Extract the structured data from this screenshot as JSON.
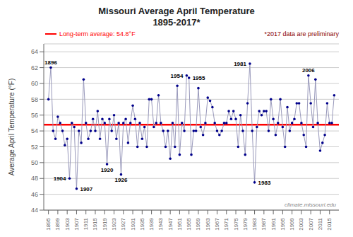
{
  "chart_data": {
    "type": "line",
    "title": "Missouri Average April Temperature",
    "subtitle": "1895-2017*",
    "ylabel": "Average April Temperature (°F)",
    "x": [
      1895,
      1896,
      1897,
      1898,
      1899,
      1900,
      1901,
      1902,
      1903,
      1904,
      1905,
      1906,
      1907,
      1908,
      1909,
      1910,
      1911,
      1912,
      1913,
      1914,
      1915,
      1916,
      1917,
      1918,
      1919,
      1920,
      1921,
      1922,
      1923,
      1924,
      1925,
      1926,
      1927,
      1928,
      1929,
      1930,
      1931,
      1932,
      1933,
      1934,
      1935,
      1936,
      1937,
      1938,
      1939,
      1940,
      1941,
      1942,
      1943,
      1944,
      1945,
      1946,
      1947,
      1948,
      1949,
      1950,
      1951,
      1952,
      1953,
      1954,
      1955,
      1956,
      1957,
      1958,
      1959,
      1960,
      1961,
      1962,
      1963,
      1964,
      1965,
      1966,
      1967,
      1968,
      1969,
      1970,
      1971,
      1972,
      1973,
      1974,
      1975,
      1976,
      1977,
      1978,
      1979,
      1980,
      1981,
      1982,
      1983,
      1984,
      1985,
      1986,
      1987,
      1988,
      1989,
      1990,
      1991,
      1992,
      1993,
      1994,
      1995,
      1996,
      1997,
      1998,
      1999,
      2000,
      2001,
      2002,
      2003,
      2004,
      2005,
      2006,
      2007,
      2008,
      2009,
      2010,
      2011,
      2012,
      2013,
      2014,
      2015,
      2016,
      2017
    ],
    "series": [
      {
        "type": "line",
        "color": "#9999BB",
        "values": [
          58.0,
          62.0,
          54.0,
          53.0,
          55.8,
          55.0,
          54.0,
          52.2,
          53.0,
          48.0,
          55.0,
          54.5,
          46.7,
          54.0,
          52.5,
          60.5,
          55.0,
          53.0,
          54.0,
          55.5,
          54.0,
          56.5,
          53.0,
          55.5,
          55.0,
          49.8,
          55.5,
          54.0,
          56.0,
          53.0,
          55.0,
          48.5,
          55.0,
          55.5,
          52.5,
          55.0,
          57.2,
          55.5,
          52.0,
          55.0,
          53.0,
          54.5,
          52.0,
          58.0,
          58.0,
          54.5,
          55.0,
          58.5,
          55.0,
          54.0,
          52.0,
          54.0,
          50.5,
          55.0,
          52.0,
          59.7,
          51.0,
          55.0,
          54.0,
          61.0,
          60.7,
          51.0,
          54.0,
          54.0,
          59.4,
          54.5,
          53.5,
          55.0,
          58.2,
          57.8,
          57.0,
          55.0,
          54.0,
          53.5,
          54.0,
          55.0,
          55.0,
          56.5,
          55.5,
          56.5,
          55.5,
          52.0,
          56.0,
          54.0,
          51.0,
          57.5,
          62.5,
          54.0,
          47.5,
          54.5,
          56.5,
          56.0,
          56.5,
          56.5,
          54.0,
          58.0,
          55.5,
          53.5,
          55.0,
          58.0,
          54.5,
          52.0,
          57.0,
          54.0,
          55.0,
          55.5,
          57.5,
          57.5,
          55.0,
          53.5,
          52.0,
          61.0,
          57.5,
          54.5,
          60.5,
          55.0,
          51.5,
          52.5,
          53.5,
          57.5,
          55.0,
          55.0,
          58.5
        ]
      },
      {
        "type": "scatter",
        "color": "#00008B",
        "values": [
          58.0,
          62.0,
          54.0,
          53.0,
          55.8,
          55.0,
          54.0,
          52.2,
          53.0,
          48.0,
          55.0,
          54.5,
          46.7,
          54.0,
          52.5,
          60.5,
          55.0,
          53.0,
          54.0,
          55.5,
          54.0,
          56.5,
          53.0,
          55.5,
          55.0,
          49.8,
          55.5,
          54.0,
          56.0,
          53.0,
          55.0,
          48.5,
          55.0,
          55.5,
          52.5,
          55.0,
          57.2,
          55.5,
          52.0,
          55.0,
          53.0,
          54.5,
          52.0,
          58.0,
          58.0,
          54.5,
          55.0,
          58.5,
          55.0,
          54.0,
          52.0,
          54.0,
          50.5,
          55.0,
          52.0,
          59.7,
          51.0,
          55.0,
          54.0,
          61.0,
          60.7,
          51.0,
          54.0,
          54.0,
          59.4,
          54.5,
          53.5,
          55.0,
          58.2,
          57.8,
          57.0,
          55.0,
          54.0,
          53.5,
          54.0,
          55.0,
          55.0,
          56.5,
          55.5,
          56.5,
          55.5,
          52.0,
          56.0,
          54.0,
          51.0,
          57.5,
          62.5,
          54.0,
          47.5,
          54.5,
          56.5,
          56.0,
          56.5,
          56.5,
          54.0,
          58.0,
          55.5,
          53.5,
          55.0,
          58.0,
          54.5,
          52.0,
          57.0,
          54.0,
          55.0,
          55.5,
          57.5,
          57.5,
          55.0,
          53.5,
          52.0,
          61.0,
          57.5,
          54.5,
          60.5,
          55.0,
          51.5,
          52.5,
          53.5,
          57.5,
          55.0,
          55.0,
          58.5
        ]
      }
    ],
    "hline": {
      "value": 54.8,
      "color": "#FF0000",
      "label": "Long-term average: 54.8°F"
    },
    "note": "*2017 data are preliminary",
    "watermark": "climate.missouri.edu",
    "annotations": [
      {
        "text": "1896",
        "x": 1896,
        "y": 62.0
      },
      {
        "text": "1904",
        "x": 1904,
        "y": 48.0
      },
      {
        "text": "1907",
        "x": 1907,
        "y": 46.7
      },
      {
        "text": "1920",
        "x": 1920,
        "y": 49.8
      },
      {
        "text": "1926",
        "x": 1926,
        "y": 48.5
      },
      {
        "text": "1954",
        "x": 1954,
        "y": 61.0
      },
      {
        "text": "1955",
        "x": 1955,
        "y": 60.7
      },
      {
        "text": "1981",
        "x": 1981,
        "y": 62.5
      },
      {
        "text": "1983",
        "x": 1983,
        "y": 47.5
      },
      {
        "text": "2006",
        "x": 2006,
        "y": 61.0
      }
    ],
    "xlim": [
      1893,
      2019
    ],
    "xticks": [
      1895,
      1899,
      1903,
      1907,
      1911,
      1915,
      1919,
      1923,
      1927,
      1931,
      1935,
      1939,
      1943,
      1947,
      1951,
      1955,
      1959,
      1963,
      1967,
      1971,
      1975,
      1979,
      1983,
      1987,
      1991,
      1995,
      1999,
      2003,
      2007,
      2011,
      2015
    ],
    "ylim": [
      44.0,
      65.0
    ],
    "yticks": [
      44.0,
      46.0,
      48.0,
      50.0,
      52.0,
      54.0,
      56.0,
      58.0,
      60.0,
      62.0,
      64.0
    ],
    "grid": true
  }
}
